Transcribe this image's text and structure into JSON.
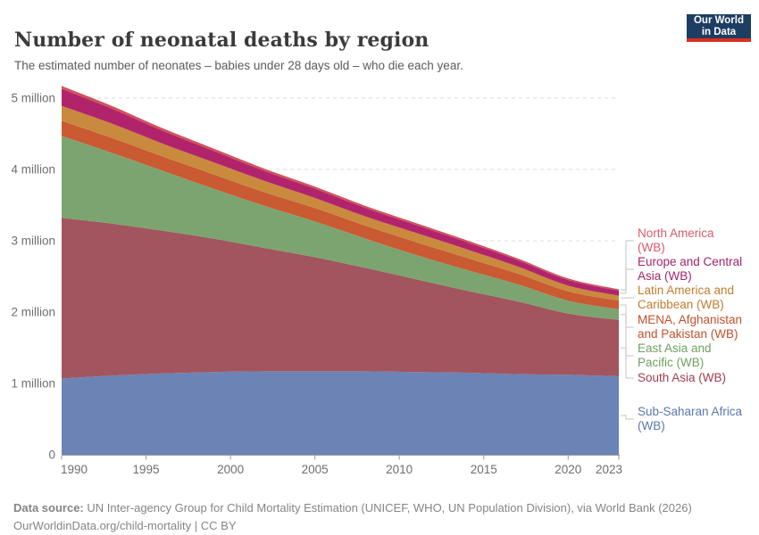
{
  "header": {
    "logo_line1": "Our World",
    "logo_line2": "in Data",
    "logo_bg_color": "#1d3d63",
    "logo_bar_color": "#d8301f"
  },
  "chart_data": {
    "type": "area",
    "stacked": true,
    "title": "Number of neonatal deaths by region",
    "subtitle": "The estimated number of neonates – babies under 28 days old – who die each year.",
    "unit": "million",
    "xlabel": "",
    "ylabel": "",
    "grid": true,
    "legend_position": "right",
    "x": [
      1990,
      1993,
      1996,
      1999,
      2002,
      2005,
      2008,
      2011,
      2014,
      2017,
      2020,
      2023
    ],
    "x_ticks": [
      "1990",
      "1995",
      "2000",
      "2005",
      "2010",
      "2015",
      "2020",
      "2023"
    ],
    "y_ticks": [
      {
        "value": 0,
        "label": "0"
      },
      {
        "value": 1,
        "label": "1 million"
      },
      {
        "value": 2,
        "label": "2 million"
      },
      {
        "value": 3,
        "label": "3 million"
      },
      {
        "value": 4,
        "label": "4 million"
      },
      {
        "value": 5,
        "label": "5 million"
      }
    ],
    "xlim": [
      1990,
      2023
    ],
    "ylim": [
      0,
      5.3
    ],
    "series": [
      {
        "id": "sub-saharan-africa",
        "name": "Sub-Saharan Africa (WB)",
        "legend_lines": [
          "Sub-Saharan Africa",
          "(WB)"
        ],
        "color": "#6c83b5",
        "label_color": "#5878ab",
        "values": [
          1.07,
          1.11,
          1.14,
          1.16,
          1.17,
          1.17,
          1.17,
          1.16,
          1.15,
          1.13,
          1.12,
          1.1
        ]
      },
      {
        "id": "south-asia",
        "name": "South Asia (WB)",
        "legend_lines": [
          "South Asia (WB)"
        ],
        "color": "#a2555e",
        "label_color": "#a13d4e",
        "values": [
          2.25,
          2.13,
          2.0,
          1.87,
          1.73,
          1.6,
          1.45,
          1.3,
          1.15,
          1.02,
          0.86,
          0.79
        ]
      },
      {
        "id": "east-asia-pacific",
        "name": "East Asia and Pacific (WB)",
        "legend_lines": [
          "East Asia and",
          "Pacific (WB)"
        ],
        "color": "#7ca470",
        "label_color": "#6fa05e",
        "values": [
          1.15,
          0.99,
          0.84,
          0.7,
          0.59,
          0.5,
          0.41,
          0.34,
          0.29,
          0.24,
          0.18,
          0.15
        ]
      },
      {
        "id": "mena-afghanistan-pakistan",
        "name": "MENA, Afghanistan and Pakistan (WB)",
        "legend_lines": [
          "MENA, Afghanistan",
          "and Pakistan (WB)"
        ],
        "color": "#c95a32",
        "label_color": "#c3512b",
        "values": [
          0.21,
          0.21,
          0.2,
          0.2,
          0.19,
          0.19,
          0.18,
          0.18,
          0.17,
          0.15,
          0.13,
          0.12
        ]
      },
      {
        "id": "latin-america-caribbean",
        "name": "Latin America and Caribbean (WB)",
        "legend_lines": [
          "Latin America and",
          "Caribbean (WB)"
        ],
        "color": "#c98a3d",
        "label_color": "#c07c2e",
        "values": [
          0.21,
          0.2,
          0.18,
          0.17,
          0.16,
          0.14,
          0.13,
          0.13,
          0.12,
          0.1,
          0.08,
          0.07
        ]
      },
      {
        "id": "europe-central-asia",
        "name": "Europe and Central Asia (WB)",
        "legend_lines": [
          "Europe and Central",
          "Asia (WB)"
        ],
        "color": "#b1246c",
        "label_color": "#a4236b",
        "values": [
          0.24,
          0.21,
          0.18,
          0.16,
          0.14,
          0.13,
          0.12,
          0.11,
          0.1,
          0.09,
          0.08,
          0.07
        ]
      },
      {
        "id": "north-america",
        "name": "North America (WB)",
        "legend_lines": [
          "North America",
          "(WB)"
        ],
        "color": "#d2515a",
        "label_color": "#d85c68",
        "values": [
          0.04,
          0.038,
          0.035,
          0.033,
          0.031,
          0.03,
          0.028,
          0.027,
          0.026,
          0.024,
          0.022,
          0.02
        ]
      }
    ]
  },
  "footer": {
    "source_label": "Data source:",
    "source_rest": " UN Inter-agency Group for Child Mortality Estimation (UNICEF, WHO, UN Population Division), via World Bank (2026)",
    "line2": "OurWorldinData.org/child-mortality | CC BY"
  }
}
